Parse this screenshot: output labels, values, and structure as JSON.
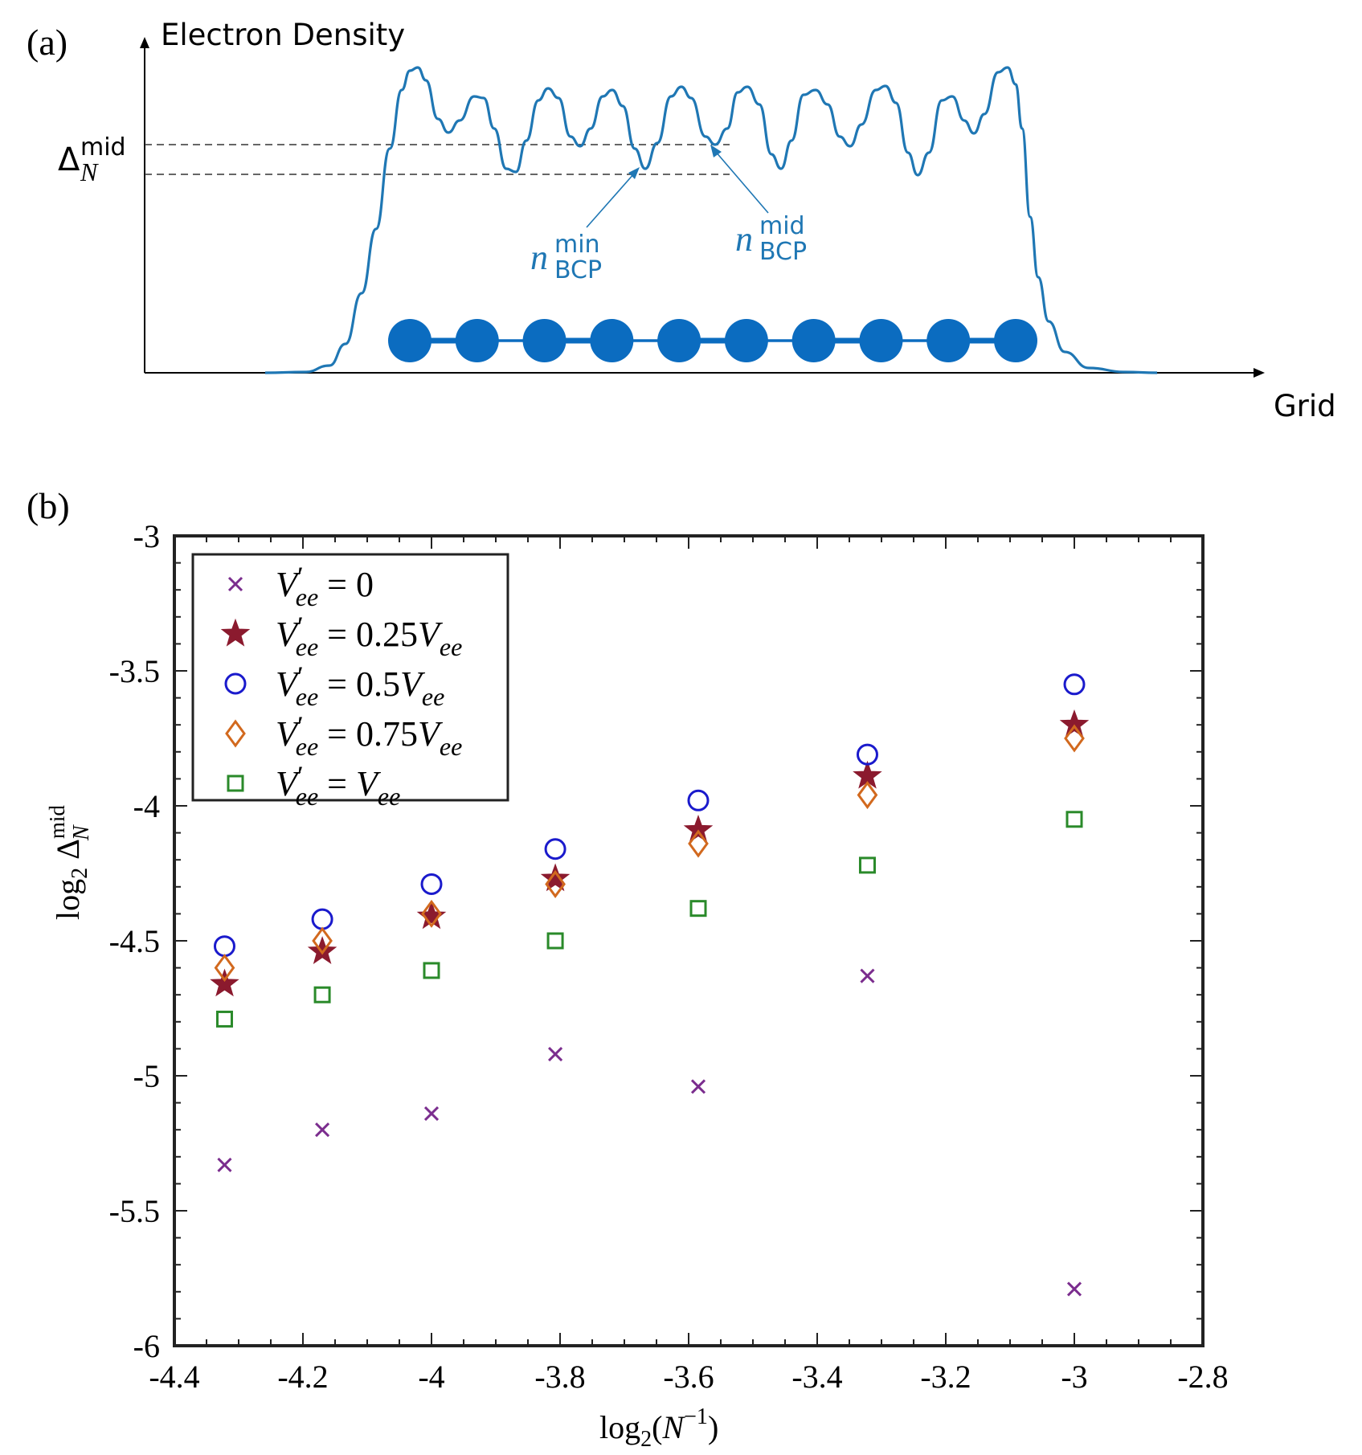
{
  "panel_a": {
    "label": "(a)",
    "y_axis_label": "Electron Density",
    "x_axis_label": "Grid",
    "delta_label": {
      "symbol": "Δ",
      "sup": "mid",
      "sub": "N"
    },
    "annot_min": {
      "symbol": "n",
      "sup": "min",
      "sub": "BCP"
    },
    "annot_mid": {
      "symbol": "n",
      "sup": "mid",
      "sub": "BCP"
    },
    "atom_count": 10,
    "curve_color": "#1f77b4",
    "atom_color": "#0b6cc0"
  },
  "panel_b": {
    "label": "(b)"
  },
  "chart_data": {
    "type": "scatter",
    "title": "",
    "xlabel": "log2(N^-1)",
    "ylabel": "log2 Δ_N^mid",
    "xlim": [
      -4.4,
      -2.8
    ],
    "ylim": [
      -6,
      -3
    ],
    "xticks": [
      -4.4,
      -4.2,
      -4.0,
      -3.8,
      -3.6,
      -3.4,
      -3.2,
      -3.0,
      -2.8
    ],
    "xtick_labels": [
      "-4.4",
      "-4.2",
      "-4",
      "-3.8",
      "-3.6",
      "-3.4",
      "-3.2",
      "-3",
      "-2.8"
    ],
    "yticks": [
      -6,
      -5.5,
      -5,
      -4.5,
      -4,
      -3.5,
      -3
    ],
    "ytick_labels": [
      "-6",
      "-5.5",
      "-5",
      "-4.5",
      "-4",
      "-3.5",
      "-3"
    ],
    "x": [
      -4.3219,
      -4.1699,
      -4.0,
      -3.8074,
      -3.585,
      -3.3219,
      -3.0
    ],
    "legend_position": "top-left",
    "series": [
      {
        "name": "V'ee = 0",
        "legend_rhs": "0",
        "marker": "x",
        "color": "#7b2d8e",
        "values": [
          -5.33,
          -5.2,
          -5.14,
          -4.92,
          -5.04,
          -4.63,
          -5.79
        ]
      },
      {
        "name": "V'ee = 0.25Vee",
        "legend_rhs": "0.25",
        "marker": "star",
        "color": "#8b1a2e",
        "values": [
          -4.66,
          -4.54,
          -4.41,
          -4.27,
          -4.09,
          -3.89,
          -3.7
        ]
      },
      {
        "name": "V'ee = 0.5Vee",
        "legend_rhs": "0.5",
        "marker": "circle",
        "color": "#1a1acc",
        "values": [
          -4.52,
          -4.42,
          -4.29,
          -4.16,
          -3.98,
          -3.81,
          -3.55
        ]
      },
      {
        "name": "V'ee = 0.75Vee",
        "legend_rhs": "0.75",
        "marker": "diamond",
        "color": "#d2691e",
        "values": [
          -4.6,
          -4.5,
          -4.4,
          -4.29,
          -4.14,
          -3.96,
          -3.75
        ]
      },
      {
        "name": "V'ee = Vee",
        "legend_rhs": "",
        "marker": "square",
        "color": "#2a8a2a",
        "values": [
          -4.79,
          -4.7,
          -4.61,
          -4.5,
          -4.38,
          -4.22,
          -4.05
        ]
      }
    ]
  }
}
